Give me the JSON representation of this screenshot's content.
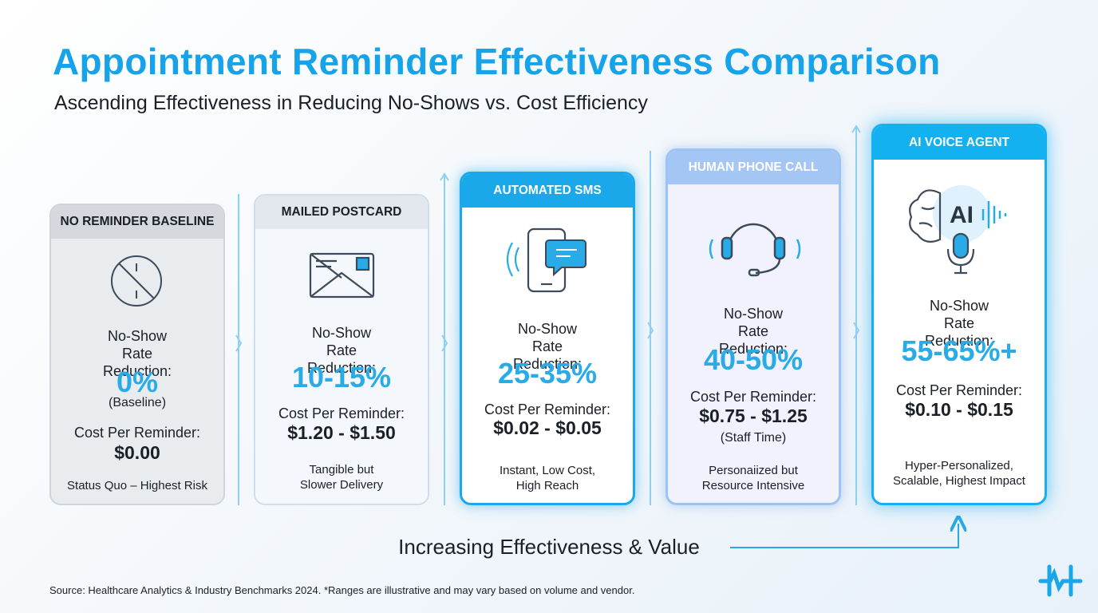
{
  "header": {
    "title": "Appointment Reminder Effectiveness Comparison",
    "subtitle": "Ascending Effectiveness in Reducing No-Shows vs. Cost Efficiency"
  },
  "cards": [
    {
      "header": "NO REMINDER BASELINE",
      "metric_label": "No-Show Rate Reduction:",
      "metric_value": "0%",
      "metric_note": "(Baseline)",
      "cost_label": "Cost Per Reminder:",
      "cost_value": "$0.00",
      "description": [
        "Status Quo – Highest Risk"
      ]
    },
    {
      "header": "MAILED POSTCARD",
      "metric_label": "No-Show Rate Reduction:",
      "metric_value": "10-15%",
      "cost_label": "Cost Per Reminder:",
      "cost_value": "$1.20 - $1.50",
      "description": [
        "Tangible but",
        "Slower Delivery"
      ]
    },
    {
      "header": "AUTOMATED SMS",
      "metric_label": "No-Show Rate Reduction:",
      "metric_value": "25-35%",
      "cost_label": "Cost Per Reminder:",
      "cost_value": "$0.02 - $0.05",
      "description": [
        "Instant, Low Cost,",
        "High Reach"
      ]
    },
    {
      "header": "HUMAN PHONE CALL",
      "metric_label": "No-Show Rate Reduction:",
      "metric_value": "40-50%",
      "cost_label": "Cost Per Reminder:",
      "cost_value": "$0.75 - $1.25",
      "cost_note": "(Staff Time)",
      "description": [
        "Personaiized but",
        "Resource Intensive"
      ]
    },
    {
      "header": "AI VOICE AGENT",
      "metric_label": "No-Show Rate Reduction:",
      "metric_value": "55-65%+",
      "cost_label": "Cost Per Reminder:",
      "cost_value": "$0.10 - $0.15",
      "description": [
        "Hyper-Personalized,",
        "Scalable, Highest Impact"
      ]
    }
  ],
  "flow_label": "Increasing Effectiveness & Value",
  "source": "Source: Healthcare Analytics & Industry Benchmarks 2024. *Ranges are illustrative and may vary based on volume and vendor.",
  "icon_text": "AI"
}
